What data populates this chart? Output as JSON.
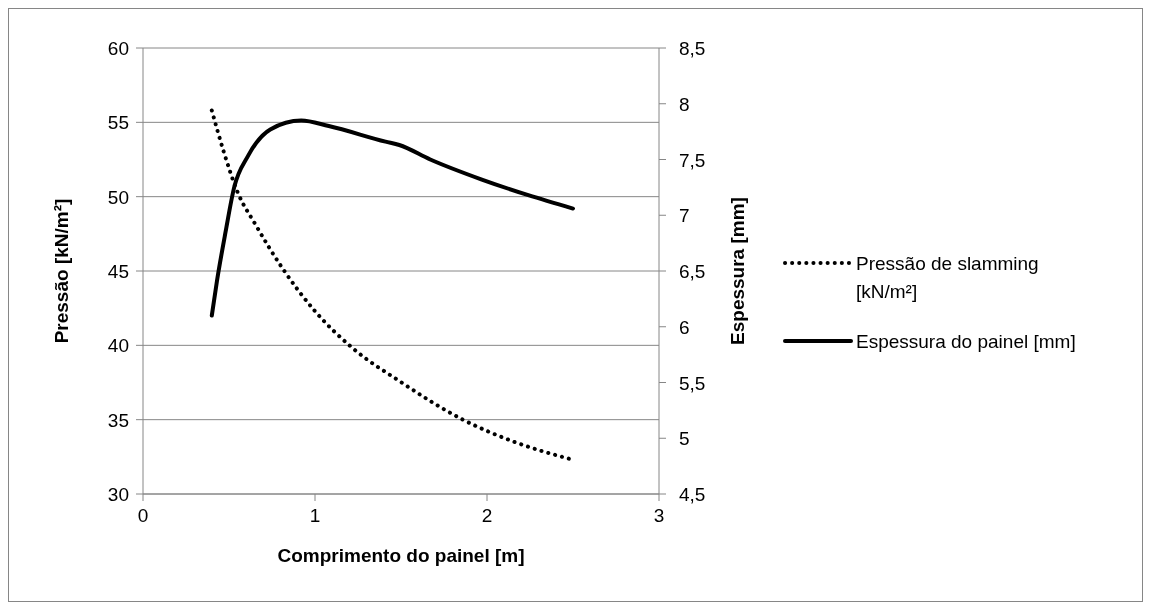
{
  "chart_data": {
    "type": "line",
    "xlabel": "Comprimento do painel [m]",
    "ylabel": "Pressão [kN/m²]",
    "y2label": "Espessura [mm]",
    "xlim": [
      0,
      3
    ],
    "xticks": [
      0,
      1,
      2,
      3
    ],
    "ylim": [
      30,
      60
    ],
    "yticks": [
      30,
      35,
      40,
      45,
      50,
      55,
      60
    ],
    "y2lim": [
      4.5,
      8.5
    ],
    "y2ticks": [
      {
        "value": 4.5,
        "label": "4,5"
      },
      5,
      {
        "value": 5.5,
        "label": "5,5"
      },
      6,
      {
        "value": 6.5,
        "label": "6,5"
      },
      7,
      {
        "value": 7.5,
        "label": "7,5"
      },
      8,
      {
        "value": 8.5,
        "label": "8,5"
      }
    ],
    "grid": "y",
    "legend": "right",
    "series": [
      {
        "name": "Pressão de slamming [kN/m²]",
        "color": "#000000",
        "line_style": "dotted",
        "x": [
          0.4,
          0.47,
          0.55,
          0.65,
          0.81,
          1.0,
          1.22,
          1.49,
          1.86,
          2.16,
          2.5
        ],
        "values": [
          55.8,
          53.0,
          50.3,
          48.2,
          45.2,
          42.3,
          39.8,
          37.6,
          35.0,
          33.5,
          32.3
        ]
      },
      {
        "name": "Espessura do painel [mm]",
        "color": "#000000",
        "line_style": "solid",
        "axis": "y2",
        "x": [
          0.4,
          0.43,
          0.48,
          0.53,
          0.61,
          0.74,
          0.92,
          1.08,
          1.41,
          1.49,
          1.67,
          1.97,
          2.24,
          2.5
        ],
        "values": [
          6.1,
          6.41,
          6.85,
          7.25,
          7.53,
          7.77,
          7.85,
          7.8,
          7.66,
          7.63,
          7.5,
          7.32,
          7.18,
          7.06
        ]
      }
    ]
  }
}
